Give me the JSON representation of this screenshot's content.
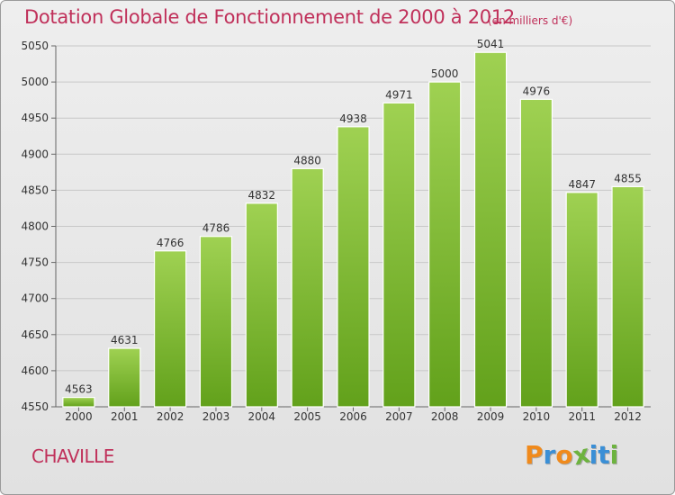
{
  "header": {
    "title": "Dotation Globale de Fonctionnement de 2000 à 2012",
    "subtitle": "(en milliers d'€)"
  },
  "footer": {
    "city": "CHAVILLE",
    "logo_letters": [
      "P",
      "r",
      "o",
      "x",
      "i",
      "t",
      "i"
    ]
  },
  "colors": {
    "title": "#c0305a",
    "bar_top": "#9fd152",
    "bar_bottom": "#62a11b",
    "grid": "#c8c8c8",
    "logo": [
      "#f08a1c",
      "#3a8fd6",
      "#f08a1c",
      "#6db33f",
      "#3a8fd6",
      "#3a8fd6",
      "#6db33f"
    ]
  },
  "chart_data": {
    "type": "bar",
    "categories": [
      "2000",
      "2001",
      "2002",
      "2003",
      "2004",
      "2005",
      "2006",
      "2007",
      "2008",
      "2009",
      "2010",
      "2011",
      "2012"
    ],
    "values": [
      4563,
      4631,
      4766,
      4786,
      4832,
      4880,
      4938,
      4971,
      5000,
      5041,
      4976,
      4847,
      4855
    ],
    "title": "Dotation Globale de Fonctionnement de 2000 à 2012",
    "subtitle": "(en milliers d'€)",
    "xlabel": "",
    "ylabel": "",
    "ylim": [
      4550,
      5050
    ],
    "yticks": [
      4550,
      4600,
      4650,
      4700,
      4750,
      4800,
      4850,
      4900,
      4950,
      5000,
      5050
    ],
    "grid": true,
    "legend": "none"
  }
}
